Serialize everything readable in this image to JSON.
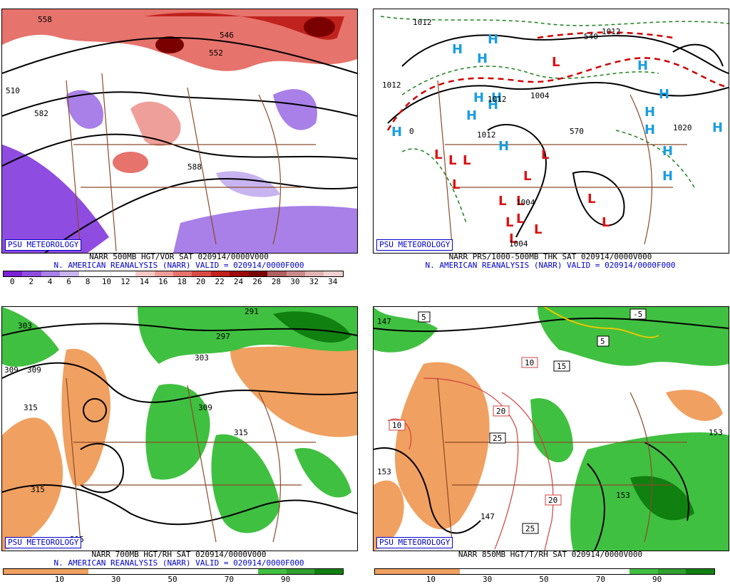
{
  "panels": [
    {
      "id": "vor",
      "badge": "PSU METEOROLOGY",
      "caption1": "NARR 500MB HGT/VOR SAT 020914/0000V000",
      "caption2": "N. AMERICAN REANALYSIS (NARR) VALID = 020914/0000F000",
      "colorbar": {
        "colors": [
          "#7b22d6",
          "#8f4ce0",
          "#a880e8",
          "#c8b4f0",
          "#ffffff",
          "#ffffff",
          "#ffffff",
          "#f7c9c6",
          "#ef9f99",
          "#e6736c",
          "#d94a45",
          "#c0221e",
          "#9c0a0a",
          "#7a0000",
          "#b06060",
          "#c98a8a",
          "#e0b4b4",
          "#f0d0d0"
        ],
        "ticks": [
          "0",
          "2",
          "4",
          "6",
          "8",
          "10",
          "12",
          "14",
          "16",
          "18",
          "20",
          "22",
          "24",
          "26",
          "28",
          "30",
          "32",
          "34"
        ]
      },
      "labels": [
        "558",
        "546",
        "552",
        "510",
        "582",
        "588"
      ]
    },
    {
      "id": "thk",
      "badge": "PSU METEOROLOGY",
      "caption1": "NARR PRS/1000-500MB THK SAT 020914/0000V000",
      "caption2": "N. AMERICAN REANALYSIS (NARR) VALID = 020914/0000F000",
      "labels": [
        "1012",
        "1012",
        "1012",
        "1012",
        "1004",
        "1004",
        "1004",
        "1020",
        "1012",
        "570",
        "540",
        "0"
      ],
      "highs": 16,
      "lows": 15
    },
    {
      "id": "rh700",
      "badge": "PSU METEOROLOGY",
      "caption1": "NARR 700MB HGT/RH SAT 020914/0000V000",
      "caption2": "N. AMERICAN REANALYSIS (NARR) VALID = 020914/0000F000",
      "colorbar": {
        "colors": [
          "#f0a060",
          "#f0a060",
          "#f0a060",
          "#ffffff",
          "#ffffff",
          "#ffffff",
          "#ffffff",
          "#ffffff",
          "#ffffff",
          "#40c040",
          "#30a030",
          "#108010"
        ],
        "ticks": [
          "10",
          "30",
          "50",
          "70",
          "90"
        ]
      },
      "labels": [
        "303",
        "309",
        "309",
        "315",
        "315",
        "297",
        "291",
        "303",
        "309",
        "315",
        "315"
      ]
    },
    {
      "id": "t850",
      "badge": "PSU METEOROLOGY",
      "caption1": "NARR 850MB HGT/T/RH SAT 020914/0000V000",
      "caption2": "",
      "colorbar": {
        "colors": [
          "#f0a060",
          "#f0a060",
          "#f0a060",
          "#ffffff",
          "#ffffff",
          "#ffffff",
          "#ffffff",
          "#ffffff",
          "#ffffff",
          "#40c040",
          "#30a030",
          "#108010"
        ],
        "ticks": [
          "10",
          "30",
          "50",
          "70",
          "90"
        ]
      },
      "labels": [
        "147",
        "153",
        "153",
        "153",
        "147"
      ],
      "temps": [
        "5",
        "-5",
        "5",
        "15",
        "10",
        "10",
        "20",
        "25",
        "20",
        "25"
      ]
    }
  ]
}
